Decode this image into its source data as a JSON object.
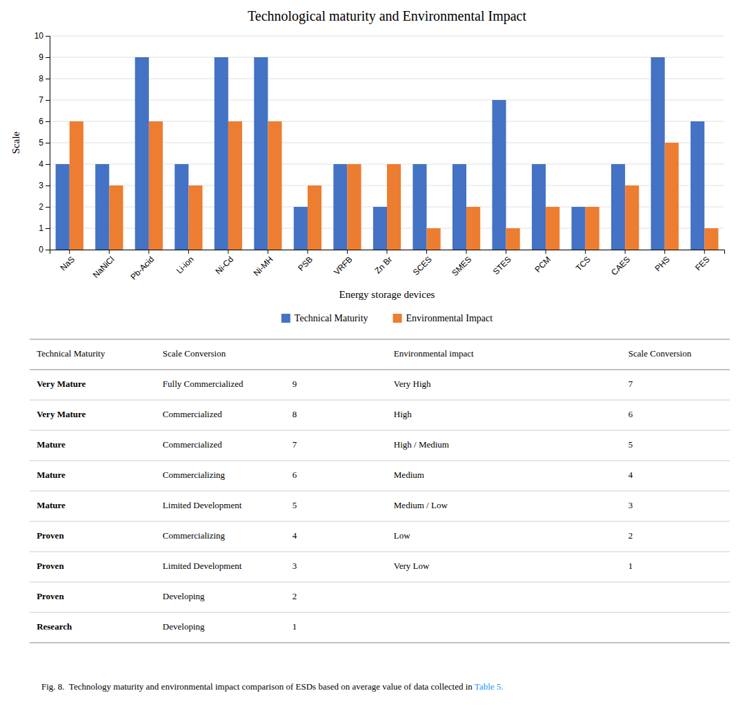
{
  "chart_data": {
    "type": "bar",
    "title": "Technological maturity and Environmental Impact",
    "xlabel": "Energy storage devices",
    "ylabel": "Scale",
    "categories": [
      "NaS",
      "NaNiCl",
      "Pb-Acid",
      "Li-ion",
      "Ni-Cd",
      "Ni-MH",
      "PSB",
      "VRFB",
      "Zn Br",
      "SCES",
      "SMES",
      "STES",
      "PCM",
      "TCS",
      "CAES",
      "PHS",
      "FES"
    ],
    "series": [
      {
        "name": "Technical Maturity",
        "color": "#4472C4",
        "values": [
          4,
          4,
          9,
          4,
          9,
          9,
          2,
          4,
          2,
          4,
          4,
          7,
          4,
          2,
          4,
          9,
          6
        ]
      },
      {
        "name": "Environmental Impact",
        "color": "#ED7D31",
        "values": [
          6,
          3,
          6,
          3,
          6,
          6,
          3,
          4,
          4,
          1,
          2,
          1,
          2,
          2,
          3,
          5,
          1
        ]
      }
    ],
    "ylim": [
      0,
      10
    ],
    "yticks": [
      0,
      1,
      2,
      3,
      4,
      5,
      6,
      7,
      8,
      9,
      10
    ],
    "grid": true,
    "legend": "bottom",
    "table": {
      "left": {
        "headers": [
          "Technical Maturity",
          "Scale Conversion"
        ],
        "rows": [
          [
            "Very Mature",
            "Fully Commercialized",
            "9"
          ],
          [
            "Very Mature",
            "Commercialized",
            "8"
          ],
          [
            "Mature",
            "Commercialized",
            "7"
          ],
          [
            "Mature",
            "Commercializing",
            "6"
          ],
          [
            "Mature",
            "Limited Development",
            "5"
          ],
          [
            "Proven",
            "Commercializing",
            "4"
          ],
          [
            "Proven",
            "Limited Development",
            "3"
          ],
          [
            "Proven",
            "Developing",
            "2"
          ],
          [
            "Research",
            "Developing",
            "1"
          ]
        ]
      },
      "right": {
        "headers": [
          "Environmental impact",
          "Scale Conversion"
        ],
        "rows": [
          [
            "Very High",
            "7"
          ],
          [
            "High",
            "6"
          ],
          [
            "High / Medium",
            "5"
          ],
          [
            "Medium",
            "4"
          ],
          [
            "Medium / Low",
            "3"
          ],
          [
            "Low",
            "2"
          ],
          [
            "Very Low",
            "1"
          ]
        ]
      }
    },
    "caption": {
      "text": "Fig. 8.  Technology maturity and environmental impact comparison of ESDs based on average value of data collected in ",
      "link": "Table 5.",
      "color": "#2196F3"
    }
  }
}
